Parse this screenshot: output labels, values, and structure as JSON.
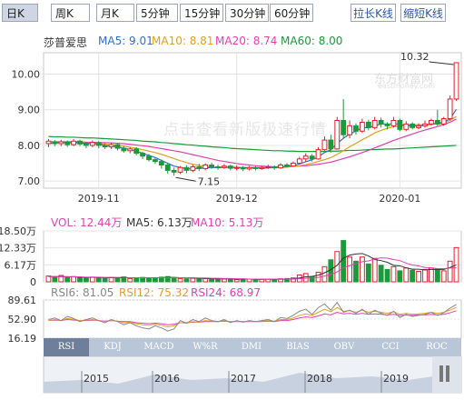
{
  "toolbar": {
    "periods": [
      "日K",
      "周K",
      "月K",
      "5分钟",
      "15分钟",
      "30分钟",
      "60分钟"
    ],
    "active_period": "日K",
    "stretch_label": "拉长K线",
    "shrink_label": "缩短K线"
  },
  "stock": {
    "name": "莎普爱思",
    "ma5": "MA5: 9.01",
    "ma10": "MA10: 8.81",
    "ma20": "MA20: 8.74",
    "ma60": "MA60: 8.00"
  },
  "colors": {
    "up": "#e0202a",
    "down": "#1a9a3a",
    "ma5": "#2f6fcf",
    "ma10": "#e0a020",
    "ma20": "#e040b0",
    "ma60": "#1a9a3a",
    "rsi6": "#888888",
    "rsi12": "#e0a020",
    "rsi24": "#e040b0"
  },
  "watermark": "点击查看新版极速行情",
  "logo": {
    "name": "东方财富网",
    "domain": "eastmoney.com"
  },
  "chart_data": {
    "type": "candlestick",
    "price_axis": {
      "ticks": [
        "10.00",
        "9.00",
        "8.00",
        "7.00"
      ],
      "ylim": [
        6.8,
        10.6
      ]
    },
    "x_tick_labels": [
      "2019-11",
      "2019-12",
      "2020-01"
    ],
    "annotations": {
      "high": "10.32",
      "low": "7.15"
    },
    "candles": [
      [
        8.05,
        8.12,
        7.95,
        8.18
      ],
      [
        8.1,
        8.05,
        7.98,
        8.15
      ],
      [
        8.05,
        8.1,
        7.98,
        8.16
      ],
      [
        8.1,
        8.02,
        7.96,
        8.14
      ],
      [
        8.02,
        8.12,
        7.98,
        8.18
      ],
      [
        8.12,
        8.04,
        7.98,
        8.16
      ],
      [
        8.04,
        8.0,
        7.92,
        8.1
      ],
      [
        8.0,
        8.08,
        7.95,
        8.14
      ],
      [
        8.08,
        8.0,
        7.92,
        8.12
      ],
      [
        8.0,
        7.96,
        7.9,
        8.06
      ],
      [
        7.96,
        8.02,
        7.9,
        8.08
      ],
      [
        8.02,
        7.92,
        7.86,
        8.06
      ],
      [
        7.92,
        7.85,
        7.8,
        7.98
      ],
      [
        7.85,
        7.9,
        7.78,
        7.95
      ],
      [
        7.9,
        7.78,
        7.72,
        7.95
      ],
      [
        7.78,
        7.7,
        7.62,
        7.82
      ],
      [
        7.7,
        7.6,
        7.55,
        7.76
      ],
      [
        7.6,
        7.55,
        7.48,
        7.66
      ],
      [
        7.55,
        7.45,
        7.35,
        7.6
      ],
      [
        7.45,
        7.3,
        7.2,
        7.5
      ],
      [
        7.3,
        7.25,
        7.15,
        7.38
      ],
      [
        7.25,
        7.38,
        7.2,
        7.42
      ],
      [
        7.38,
        7.3,
        7.22,
        7.44
      ],
      [
        7.3,
        7.4,
        7.25,
        7.46
      ],
      [
        7.4,
        7.35,
        7.28,
        7.48
      ],
      [
        7.35,
        7.45,
        7.3,
        7.5
      ],
      [
        7.45,
        7.4,
        7.34,
        7.52
      ],
      [
        7.4,
        7.38,
        7.32,
        7.46
      ],
      [
        7.38,
        7.42,
        7.34,
        7.48
      ],
      [
        7.42,
        7.36,
        7.3,
        7.46
      ],
      [
        7.36,
        7.38,
        7.3,
        7.44
      ],
      [
        7.38,
        7.34,
        7.28,
        7.42
      ],
      [
        7.34,
        7.38,
        7.3,
        7.42
      ],
      [
        7.38,
        7.35,
        7.3,
        7.42
      ],
      [
        7.35,
        7.38,
        7.32,
        7.42
      ],
      [
        7.38,
        7.4,
        7.34,
        7.46
      ],
      [
        7.4,
        7.37,
        7.32,
        7.44
      ],
      [
        7.37,
        7.45,
        7.34,
        7.5
      ],
      [
        7.45,
        7.42,
        7.38,
        7.5
      ],
      [
        7.42,
        7.5,
        7.4,
        7.55
      ],
      [
        7.5,
        7.62,
        7.46,
        7.68
      ],
      [
        7.62,
        7.7,
        7.55,
        7.78
      ],
      [
        7.7,
        7.62,
        7.55,
        7.76
      ],
      [
        7.62,
        7.88,
        7.6,
        7.95
      ],
      [
        7.88,
        8.15,
        7.85,
        8.25
      ],
      [
        8.15,
        7.9,
        7.8,
        8.3
      ],
      [
        7.9,
        8.7,
        7.88,
        8.8
      ],
      [
        8.7,
        8.3,
        8.2,
        9.3
      ],
      [
        8.3,
        8.55,
        8.2,
        8.7
      ],
      [
        8.55,
        8.4,
        8.3,
        8.62
      ],
      [
        8.4,
        8.65,
        8.35,
        8.75
      ],
      [
        8.65,
        8.5,
        8.42,
        8.72
      ],
      [
        8.5,
        8.7,
        8.45,
        8.8
      ],
      [
        8.7,
        8.6,
        8.5,
        8.78
      ],
      [
        8.6,
        8.55,
        8.45,
        8.65
      ],
      [
        8.55,
        8.7,
        8.5,
        8.8
      ],
      [
        8.7,
        8.45,
        8.4,
        8.75
      ],
      [
        8.45,
        8.6,
        8.4,
        8.68
      ],
      [
        8.6,
        8.5,
        8.45,
        8.65
      ],
      [
        8.5,
        8.55,
        8.45,
        8.62
      ],
      [
        8.55,
        8.6,
        8.5,
        8.7
      ],
      [
        8.6,
        8.7,
        8.55,
        8.75
      ],
      [
        8.7,
        8.6,
        8.55,
        9.0
      ],
      [
        8.6,
        8.75,
        8.55,
        8.8
      ],
      [
        8.75,
        9.3,
        8.7,
        9.4
      ],
      [
        9.3,
        10.32,
        9.25,
        10.32
      ]
    ],
    "ma": {
      "ma5": [
        8.05,
        8.07,
        8.08,
        8.08,
        8.08,
        8.07,
        8.06,
        8.05,
        8.04,
        8.0,
        7.98,
        7.96,
        7.92,
        7.88,
        7.84,
        7.78,
        7.72,
        7.66,
        7.58,
        7.5,
        7.42,
        7.38,
        7.35,
        7.34,
        7.36,
        7.37,
        7.38,
        7.38,
        7.39,
        7.39,
        7.38,
        7.37,
        7.37,
        7.37,
        7.36,
        7.37,
        7.38,
        7.39,
        7.41,
        7.43,
        7.48,
        7.54,
        7.6,
        7.68,
        7.8,
        7.88,
        8.05,
        8.2,
        8.32,
        8.4,
        8.5,
        8.5,
        8.55,
        8.6,
        8.6,
        8.6,
        8.6,
        8.55,
        8.55,
        8.55,
        8.56,
        8.6,
        8.62,
        8.65,
        8.75,
        9.01
      ],
      "ma10": [
        8.06,
        8.07,
        8.07,
        8.07,
        8.07,
        8.07,
        8.07,
        8.06,
        8.06,
        8.04,
        8.02,
        8.0,
        7.98,
        7.95,
        7.92,
        7.88,
        7.84,
        7.8,
        7.75,
        7.69,
        7.63,
        7.57,
        7.52,
        7.47,
        7.44,
        7.41,
        7.39,
        7.38,
        7.38,
        7.38,
        7.38,
        7.38,
        7.38,
        7.38,
        7.38,
        7.38,
        7.38,
        7.38,
        7.39,
        7.41,
        7.43,
        7.46,
        7.5,
        7.55,
        7.6,
        7.66,
        7.75,
        7.85,
        7.96,
        8.06,
        8.16,
        8.25,
        8.35,
        8.42,
        8.48,
        8.52,
        8.55,
        8.56,
        8.58,
        8.58,
        8.58,
        8.59,
        8.6,
        8.62,
        8.7,
        8.81
      ],
      "ma20": [
        8.1,
        8.1,
        8.1,
        8.1,
        8.1,
        8.1,
        8.09,
        8.09,
        8.08,
        8.08,
        8.07,
        8.06,
        8.05,
        8.03,
        8.01,
        7.99,
        7.97,
        7.94,
        7.91,
        7.88,
        7.85,
        7.82,
        7.78,
        7.74,
        7.7,
        7.66,
        7.62,
        7.58,
        7.55,
        7.52,
        7.49,
        7.47,
        7.45,
        7.43,
        7.42,
        7.41,
        7.4,
        7.4,
        7.4,
        7.41,
        7.42,
        7.43,
        7.45,
        7.47,
        7.5,
        7.53,
        7.58,
        7.63,
        7.68,
        7.74,
        7.8,
        7.86,
        7.93,
        8.0,
        8.07,
        8.14,
        8.2,
        8.26,
        8.32,
        8.38,
        8.43,
        8.48,
        8.53,
        8.58,
        8.65,
        8.74
      ],
      "ma60": [
        8.25,
        8.24,
        8.24,
        8.23,
        8.23,
        8.22,
        8.21,
        8.21,
        8.2,
        8.19,
        8.18,
        8.17,
        8.16,
        8.15,
        8.14,
        8.12,
        8.11,
        8.1,
        8.08,
        8.07,
        8.05,
        8.04,
        8.02,
        8.01,
        7.99,
        7.98,
        7.96,
        7.95,
        7.94,
        7.92,
        7.91,
        7.9,
        7.89,
        7.88,
        7.87,
        7.86,
        7.85,
        7.85,
        7.84,
        7.84,
        7.83,
        7.83,
        7.83,
        7.83,
        7.83,
        7.84,
        7.84,
        7.85,
        7.86,
        7.86,
        7.87,
        7.88,
        7.88,
        7.89,
        7.9,
        7.9,
        7.91,
        7.92,
        7.93,
        7.94,
        7.95,
        7.96,
        7.97,
        7.98,
        7.99,
        8.0
      ]
    },
    "volume": {
      "legend": {
        "vol": "VOL: 12.44万",
        "ma5": "MA5: 6.13万",
        "ma10": "MA10: 5.13万"
      },
      "axis_ticks": [
        "18.50万",
        "12.33万",
        "6.17万",
        "0"
      ],
      "ylim": [
        0,
        18.5
      ],
      "values": [
        2.1,
        1.8,
        2.3,
        1.5,
        1.9,
        1.6,
        1.4,
        1.7,
        1.5,
        1.3,
        1.6,
        1.4,
        1.8,
        1.2,
        1.5,
        1.6,
        1.4,
        1.3,
        1.7,
        1.9,
        1.5,
        1.2,
        1.1,
        1.3,
        1.0,
        1.2,
        1.1,
        0.9,
        1.0,
        1.1,
        0.8,
        0.9,
        1.0,
        0.8,
        0.9,
        1.0,
        0.9,
        1.1,
        1.2,
        1.4,
        2.5,
        3.0,
        1.8,
        3.5,
        5.5,
        8.0,
        11.0,
        15.0,
        9.0,
        7.5,
        9.0,
        6.5,
        8.5,
        6.0,
        4.5,
        5.5,
        4.0,
        5.0,
        4.2,
        3.8,
        4.5,
        5.0,
        4.8,
        4.0,
        7.5,
        12.44
      ],
      "ma5": [
        1.9,
        1.9,
        1.9,
        1.8,
        1.8,
        1.7,
        1.6,
        1.6,
        1.6,
        1.5,
        1.5,
        1.5,
        1.5,
        1.5,
        1.5,
        1.5,
        1.5,
        1.5,
        1.5,
        1.6,
        1.6,
        1.5,
        1.5,
        1.4,
        1.3,
        1.2,
        1.1,
        1.1,
        1.1,
        1.1,
        1.0,
        1.0,
        1.0,
        0.9,
        0.9,
        0.9,
        0.9,
        0.9,
        1.0,
        1.1,
        1.4,
        1.8,
        2.0,
        2.4,
        3.3,
        4.4,
        6.0,
        8.6,
        9.7,
        10.1,
        10.3,
        9.4,
        8.1,
        7.7,
        7.1,
        6.0,
        5.8,
        5.1,
        4.6,
        4.6,
        4.3,
        4.5,
        4.5,
        4.5,
        5.2,
        6.13
      ],
      "ma10": [
        1.9,
        1.9,
        1.9,
        1.9,
        1.8,
        1.8,
        1.7,
        1.7,
        1.7,
        1.6,
        1.6,
        1.6,
        1.6,
        1.5,
        1.5,
        1.5,
        1.5,
        1.5,
        1.5,
        1.5,
        1.5,
        1.5,
        1.5,
        1.5,
        1.4,
        1.4,
        1.3,
        1.3,
        1.2,
        1.2,
        1.1,
        1.1,
        1.0,
        1.0,
        1.0,
        1.0,
        1.0,
        1.0,
        1.0,
        1.0,
        1.1,
        1.3,
        1.4,
        1.6,
        2.1,
        2.6,
        3.6,
        5.1,
        5.9,
        6.6,
        7.3,
        7.6,
        8.3,
        8.7,
        8.6,
        8.1,
        7.7,
        6.8,
        6.1,
        5.8,
        5.2,
        5.1,
        4.8,
        4.8,
        5.0,
        5.13
      ]
    },
    "rsi": {
      "legend": {
        "rsi6": "RSI6: 81.05",
        "rsi12": "RSI12: 75.32",
        "rsi24": "RSI24: 68.97"
      },
      "axis_ticks": [
        "89.61",
        "52.90",
        "16.19"
      ],
      "ylim": [
        16.19,
        89.61
      ],
      "rsi6": [
        52,
        55,
        50,
        58,
        54,
        48,
        52,
        55,
        50,
        46,
        52,
        48,
        42,
        46,
        40,
        36,
        34,
        40,
        36,
        30,
        34,
        50,
        45,
        52,
        48,
        55,
        50,
        48,
        52,
        46,
        50,
        47,
        50,
        48,
        50,
        52,
        48,
        56,
        54,
        60,
        68,
        72,
        62,
        75,
        82,
        70,
        85,
        66,
        70,
        64,
        72,
        62,
        70,
        64,
        60,
        68,
        56,
        62,
        58,
        60,
        62,
        66,
        60,
        65,
        74,
        81.05
      ],
      "rsi12": [
        50,
        52,
        50,
        54,
        52,
        50,
        51,
        52,
        50,
        48,
        50,
        49,
        46,
        47,
        44,
        42,
        41,
        43,
        41,
        38,
        40,
        46,
        45,
        48,
        47,
        50,
        49,
        48,
        50,
        48,
        49,
        48,
        49,
        48,
        49,
        50,
        49,
        52,
        52,
        55,
        60,
        63,
        60,
        66,
        72,
        67,
        75,
        68,
        69,
        66,
        70,
        66,
        68,
        66,
        64,
        67,
        62,
        64,
        62,
        63,
        64,
        66,
        64,
        66,
        70,
        75.32
      ],
      "rsi24": [
        50,
        51,
        50,
        52,
        51,
        50,
        50,
        51,
        50,
        49,
        50,
        49,
        48,
        48,
        46,
        45,
        44,
        45,
        44,
        42,
        43,
        46,
        46,
        47,
        47,
        48,
        48,
        48,
        49,
        48,
        48,
        48,
        48,
        48,
        48,
        49,
        48,
        50,
        50,
        52,
        55,
        57,
        56,
        59,
        63,
        61,
        66,
        63,
        64,
        62,
        64,
        62,
        63,
        62,
        61,
        62,
        60,
        61,
        60,
        61,
        61,
        62,
        61,
        62,
        65,
        68.97
      ]
    },
    "indicator_tabs": [
      "RSI",
      "KDJ",
      "MACD",
      "W%R",
      "DMI",
      "BIAS",
      "OBV",
      "CCI",
      "ROC"
    ],
    "active_indicator": "RSI",
    "navigator_years": [
      "2015",
      "2016",
      "2017",
      "2018",
      "2019"
    ]
  }
}
